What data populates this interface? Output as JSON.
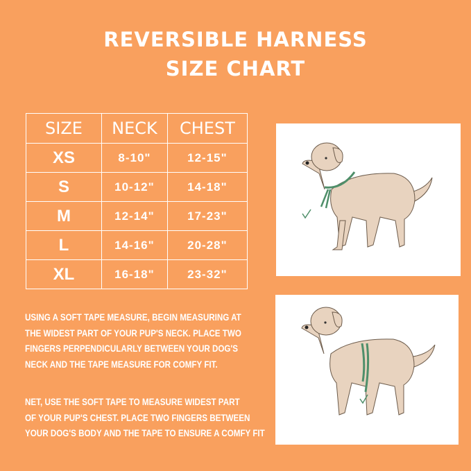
{
  "title": {
    "line1": "REVERSIBLE HARNESS",
    "line2": "SIZE CHART"
  },
  "table": {
    "headers": [
      "SIZE",
      "NECK",
      "CHEST"
    ],
    "rows": [
      [
        "XS",
        "8-10\"",
        "12-15\""
      ],
      [
        "S",
        "10-12\"",
        "14-18\""
      ],
      [
        "M",
        "12-14\"",
        "17-23\""
      ],
      [
        "L",
        "14-16\"",
        "20-28\""
      ],
      [
        "XL",
        "16-18\"",
        "23-32\""
      ]
    ]
  },
  "instructions": {
    "neck": [
      "USING A SOFT TAPE MEASURE, BEGIN MEASURING AT",
      "THE WIDEST PART OF YOUR PUP'S NECK. PLACE TWO",
      "FINGERS PERPENDICULARLY BETWEEN YOUR DOG'S",
      "NECK AND THE TAPE MEASURE FOR COMFY FIT."
    ],
    "chest": [
      "NET, USE THE SOFT TAPE TO MEASURE WIDEST PART",
      "OF YOUR PUP'S CHEST. PLACE TWO FINGERS BETWEEN",
      "YOUR DOG'S BODY AND THE TAPE TO ENSURE A COMFY FIT"
    ]
  },
  "colors": {
    "background": "#F9A05E",
    "dog": "#E8D3BF",
    "tape": "#4F8F6A"
  },
  "images": [
    "dog-neck-measurement",
    "dog-chest-measurement"
  ]
}
